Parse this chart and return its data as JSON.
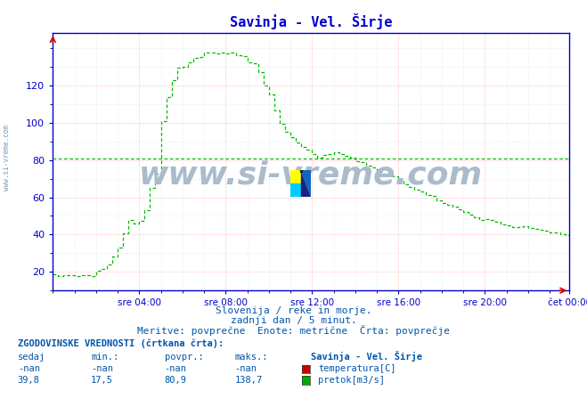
{
  "title": "Savinja - Vel. Širje",
  "background_color": "#ffffff",
  "plot_bg_color": "#ffffff",
  "grid_color_major": "#ffaaaa",
  "grid_color_minor": "#ccddee",
  "line_color": "#00bb00",
  "axis_color": "#0000cc",
  "text_color": "#0055aa",
  "text_color_dark": "#1a237e",
  "xlabel_ticks": [
    "sre 04:00",
    "sre 08:00",
    "sre 12:00",
    "sre 16:00",
    "sre 20:00",
    "čet 00:00"
  ],
  "ylim_min": 10,
  "ylim_max": 148,
  "yticks": [
    20,
    40,
    60,
    80,
    100,
    120
  ],
  "hline_value": 80.9,
  "subtitle1": "Slovenija / reke in morje.",
  "subtitle2": "zadnji dan / 5 minut.",
  "subtitle3": "Meritve: povprečne  Enote: metrične  Črta: povprečje",
  "table_header": "ZGODOVINSKE VREDNOSTI (črtkana črta):",
  "col_headers": [
    "sedaj",
    "min.:",
    "povpr.:",
    "maks.:"
  ],
  "row1": [
    "-nan",
    "-nan",
    "-nan",
    "-nan"
  ],
  "row2": [
    "39,8",
    "17,5",
    "80,9",
    "138,7"
  ],
  "legend_title": "Savinja - Vel. Širje",
  "legend_items": [
    "temperatura[C]",
    "pretok[m3/s]"
  ],
  "legend_colors": [
    "#cc0000",
    "#00aa00"
  ],
  "watermark": "www.si-vreme.com",
  "watermark_color": "#aabbcc",
  "side_text": "www.si-vreme.com",
  "n_points": 288,
  "xlim_min": 0,
  "xlim_max": 287,
  "xtick_positions": [
    48,
    96,
    144,
    192,
    240,
    287
  ],
  "flow_points_x": [
    0,
    5,
    10,
    15,
    18,
    20,
    22,
    24,
    26,
    28,
    30,
    32,
    34,
    36,
    38,
    40,
    42,
    44,
    46,
    48,
    50,
    52,
    54,
    56,
    58,
    60,
    64,
    68,
    72,
    76,
    80,
    84,
    88,
    92,
    96,
    100,
    104,
    108,
    112,
    116,
    118,
    120,
    122,
    124,
    126,
    128,
    130,
    132,
    134,
    136,
    138,
    140,
    144,
    148,
    152,
    156,
    160,
    164,
    168,
    172,
    176,
    180,
    184,
    188,
    192,
    196,
    200,
    204,
    208,
    212,
    216,
    220,
    224,
    228,
    232,
    236,
    240,
    244,
    248,
    252,
    256,
    260,
    264,
    268,
    272,
    276,
    280,
    284,
    287
  ],
  "flow_points_y": [
    18,
    18,
    18,
    18,
    18,
    18,
    19,
    20,
    21,
    22,
    24,
    27,
    30,
    33,
    38,
    44,
    48,
    47,
    46,
    47,
    50,
    56,
    65,
    72,
    75,
    100,
    118,
    128,
    130,
    134,
    136,
    137,
    138,
    137,
    138,
    137,
    137,
    133,
    131,
    122,
    118,
    115,
    108,
    105,
    99,
    96,
    95,
    93,
    91,
    89,
    87,
    85,
    83,
    81,
    83,
    84,
    83,
    82,
    80,
    78,
    76,
    74,
    73,
    71,
    69,
    67,
    65,
    63,
    61,
    59,
    57,
    55,
    54,
    52,
    50,
    49,
    48,
    47,
    46,
    45,
    44,
    44,
    43,
    43,
    42,
    41,
    41,
    40,
    39
  ]
}
